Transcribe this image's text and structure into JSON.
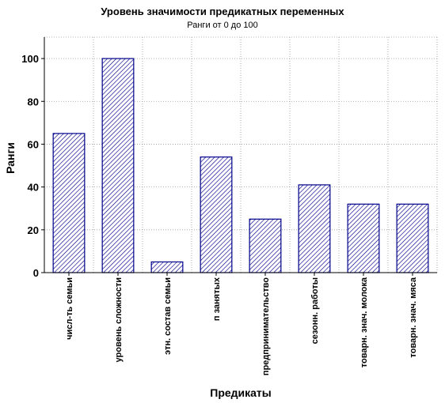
{
  "chart_data": {
    "type": "bar",
    "title": "Уровень значимости предикатных переменных",
    "subtitle": "Ранги от 0 до 100",
    "xlabel": "Предикаты",
    "ylabel": "Ранги",
    "categories": [
      "числ-ть семьи",
      "уровень сложности",
      "этн. состав семьи",
      "п занятых",
      "предпринимательство",
      "сезонн. работы",
      "товарн. знач. молока",
      "товарн. знач. мяса"
    ],
    "values": [
      65,
      100,
      5,
      54,
      25,
      41,
      32,
      32
    ],
    "ylim": [
      0,
      110
    ],
    "yticks": [
      0,
      20,
      40,
      60,
      80,
      100
    ],
    "grid": true,
    "legend": "none",
    "colors": {
      "bar_stroke": "#00008b",
      "bar_hatch": "#00008b",
      "grid": "#9a9a9a"
    }
  }
}
